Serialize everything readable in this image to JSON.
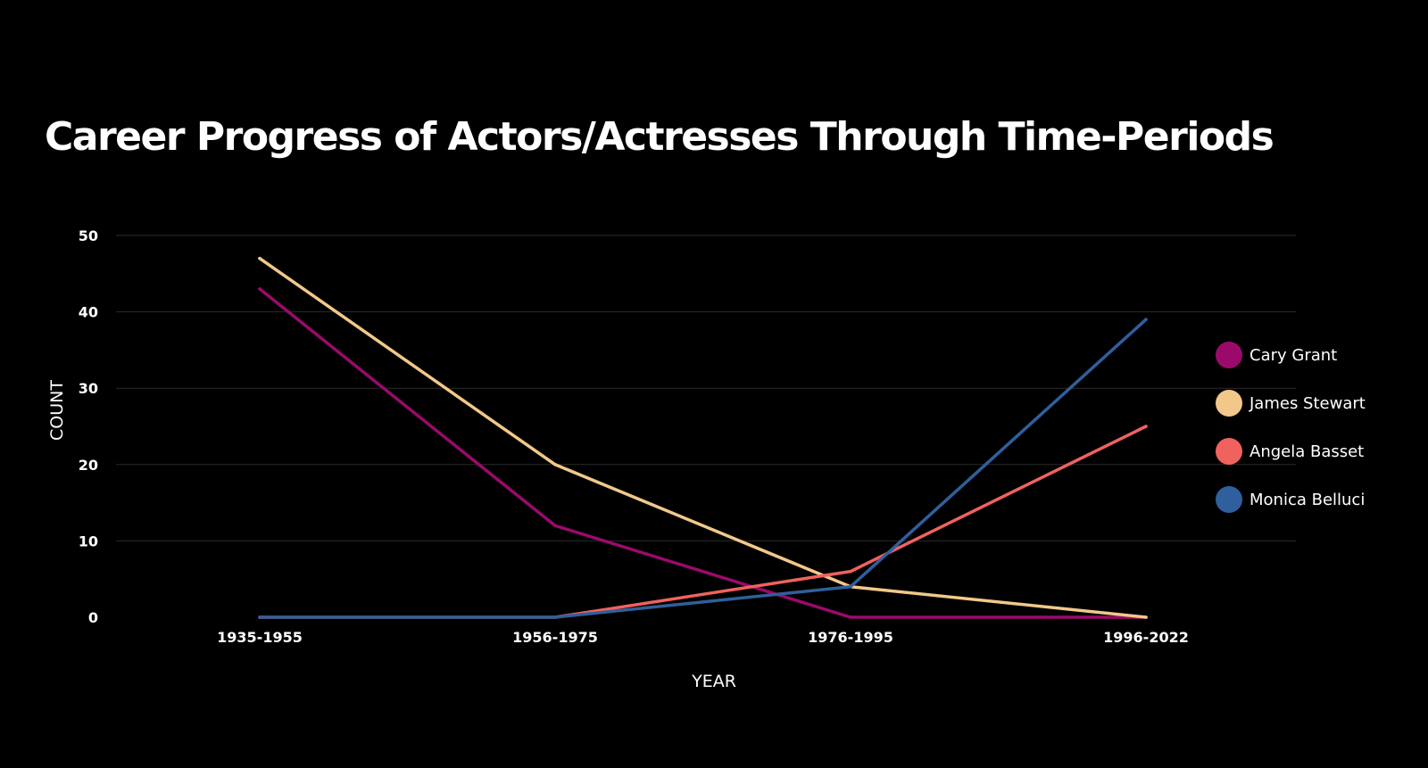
{
  "chart_data": {
    "type": "line",
    "title": "Career Progress of Actors/Actresses Through Time-Periods",
    "xlabel": "YEAR",
    "ylabel": "COUNT",
    "categories": [
      "1935-1955",
      "1956-1975",
      "1976-1995",
      "1996-2022"
    ],
    "ylim": [
      0,
      50
    ],
    "yticks": [
      0,
      10,
      20,
      30,
      40,
      50
    ],
    "grid": true,
    "legend_position": "right",
    "series": [
      {
        "name": "Cary Grant",
        "color": "#9b0a6a",
        "values": [
          43,
          12,
          0,
          0
        ]
      },
      {
        "name": "James Stewart",
        "color": "#f2c88a",
        "values": [
          47,
          20,
          4,
          0
        ]
      },
      {
        "name": "Angela Basset",
        "color": "#f0625e",
        "values": [
          0,
          0,
          6,
          25
        ]
      },
      {
        "name": "Monica Belluci",
        "color": "#2f5f9c",
        "values": [
          0,
          0,
          4,
          39
        ]
      }
    ]
  }
}
